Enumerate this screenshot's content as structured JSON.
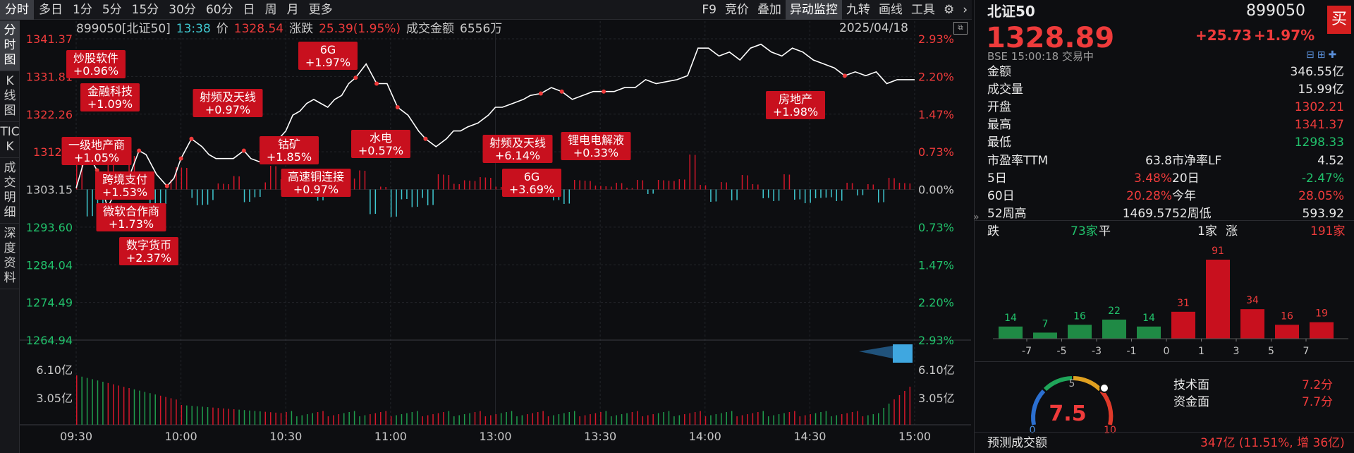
{
  "toolbar": {
    "periods": [
      "分时",
      "多日",
      "1分",
      "5分",
      "15分",
      "30分",
      "60分",
      "日",
      "周",
      "月",
      "更多"
    ],
    "tools": [
      "F9",
      "竞价",
      "叠加",
      "异动监控",
      "九转",
      "画线",
      "工具"
    ]
  },
  "sidebar": {
    "tabs": [
      "分时图",
      "K线图",
      "TICK",
      "成交明细",
      "深度资料"
    ]
  },
  "info": {
    "code_name": "899050[北证50]",
    "time": "13:38",
    "price_label": "价",
    "price": "1328.54",
    "change_label": "涨跌",
    "change": "25.39(1.95%)",
    "amount_label": "成交金额",
    "amount": "6556万",
    "date": "2025/04/18"
  },
  "quote": {
    "name": "北证50",
    "code": "899050",
    "price": "1328.89",
    "change": "+25.73",
    "change_pct": "+1.97%",
    "exchange_line": "BSE  15:00:18  交易中",
    "buy_label": "买",
    "rows": [
      {
        "label": "金额",
        "value": "346.55亿",
        "color": "white"
      },
      {
        "label": "成交量",
        "value": "15.99亿",
        "color": "white"
      },
      {
        "label": "开盘",
        "value": "1302.21",
        "color": "red"
      },
      {
        "label": "最高",
        "value": "1341.37",
        "color": "red"
      },
      {
        "label": "最低",
        "value": "1298.33",
        "color": "green"
      }
    ],
    "grid": [
      {
        "l1": "市盈率TTM",
        "v1": "63.8",
        "c1": "white",
        "l2": "市净率LF",
        "v2": "4.52",
        "c2": "white"
      },
      {
        "l1": "5日",
        "v1": "3.48%",
        "c1": "red",
        "l2": "20日",
        "v2": "-2.47%",
        "c2": "green"
      },
      {
        "l1": "60日",
        "v1": "20.28%",
        "c1": "red",
        "l2": "今年",
        "v2": "28.05%",
        "c2": "red"
      },
      {
        "l1": "52周高",
        "v1": "1469.57",
        "c1": "white",
        "l2": "52周低",
        "v2": "593.92",
        "c2": "white"
      }
    ],
    "breadth": {
      "down_label": "跌",
      "down": "73家",
      "flat_label": "平",
      "flat": "1家",
      "up_label": "涨",
      "up": "191家"
    },
    "score": {
      "value": "7.5",
      "tech_label": "技术面",
      "tech": "7.2分",
      "fund_label": "资金面",
      "fund": "7.7分",
      "gauge_min": "0",
      "gauge_mid": "5",
      "gauge_max": "10"
    },
    "forecast_label": "预测成交额",
    "forecast": "347亿 (11.51%, 增 36亿)"
  },
  "chart_data": [
    {
      "type": "line",
      "series_note": "intraday index price",
      "x_ticks": [
        "09:30",
        "10:00",
        "10:30",
        "11:00",
        "13:00",
        "13:30",
        "14:00",
        "14:30",
        "15:00"
      ],
      "y_ticks_left": [
        "1341.37",
        "1331.81",
        "1322.26",
        "1312.7",
        "1303.15",
        "1293.60",
        "1284.04",
        "1274.49",
        "1264.94"
      ],
      "y_ticks_right": [
        "2.93%",
        "2.20%",
        "1.47%",
        "0.73%",
        "0.00%",
        "0.73%",
        "1.47%",
        "2.20%",
        "2.93%"
      ],
      "ylim": [
        1264.94,
        1341.37
      ],
      "prev_close": 1303.15,
      "t": [
        0,
        3,
        6,
        9,
        12,
        15,
        18,
        20,
        23,
        26,
        28,
        30,
        33,
        36,
        38,
        40,
        42,
        45,
        48,
        50,
        53,
        55,
        58,
        60,
        62,
        64,
        66,
        68,
        70,
        72,
        74,
        76,
        78,
        80,
        83,
        86,
        89,
        92,
        95,
        98,
        100,
        103,
        106,
        108,
        110,
        112,
        115,
        118,
        120,
        122,
        125,
        128,
        130,
        133,
        136,
        139,
        142,
        145,
        148,
        151,
        154,
        157,
        160,
        163,
        166,
        169,
        172,
        175,
        178,
        181,
        184,
        187,
        190,
        193,
        196,
        199,
        202,
        205,
        208,
        211,
        214,
        217,
        220,
        223,
        226,
        229,
        232,
        235,
        238,
        240
      ],
      "price": [
        1303.5,
        1312.7,
        1308,
        1298.5,
        1304,
        1306,
        1313,
        1312,
        1307,
        1304,
        1306,
        1311,
        1316,
        1314,
        1312,
        1311,
        1311,
        1311,
        1313,
        1311,
        1310,
        1311,
        1316,
        1318,
        1322,
        1323,
        1325,
        1326,
        1325,
        1324,
        1326,
        1327,
        1330,
        1331.5,
        1335,
        1330,
        1330,
        1324,
        1322,
        1318,
        1316,
        1314,
        1316,
        1318,
        1318,
        1319,
        1320,
        1322,
        1324,
        1324,
        1325,
        1326,
        1327,
        1327.5,
        1329,
        1328,
        1326,
        1327,
        1328,
        1328,
        1328,
        1329,
        1329,
        1331,
        1330,
        1330.5,
        1331,
        1332,
        1339,
        1339,
        1337,
        1338,
        1336,
        1339,
        1340,
        1338,
        1337,
        1339,
        1338,
        1336,
        1335,
        1334,
        1332,
        1333,
        1332,
        1333,
        1330,
        1331,
        1331,
        1331
      ],
      "annotations": [
        {
          "label": "炒股软件",
          "pct": "+0.96%"
        },
        {
          "label": "金融科技",
          "pct": "+1.09%"
        },
        {
          "label": "一级地产商",
          "pct": "+1.05%"
        },
        {
          "label": "跨境支付",
          "pct": "+1.53%"
        },
        {
          "label": "微软合作商",
          "pct": "+1.73%"
        },
        {
          "label": "数字货币",
          "pct": "+2.37%"
        },
        {
          "label": "射频及天线",
          "pct": "+0.97%"
        },
        {
          "label": "6G",
          "pct": "+1.97%"
        },
        {
          "label": "钴矿",
          "pct": "+1.85%"
        },
        {
          "label": "高速铜连接",
          "pct": "+0.97%"
        },
        {
          "label": "水电",
          "pct": "+0.57%"
        },
        {
          "label": "射频及天线",
          "pct": "+6.14%"
        },
        {
          "label": "6G",
          "pct": "+3.69%"
        },
        {
          "label": "锂电电解液",
          "pct": "+0.33%"
        },
        {
          "label": "房地产",
          "pct": "+1.98%"
        }
      ]
    },
    {
      "type": "bar",
      "series_note": "turnover volume",
      "y_ticks": [
        "6.10亿",
        "3.05亿"
      ],
      "ylim": [
        0,
        9.15
      ]
    },
    {
      "type": "bar",
      "series_note": "advance/decline distribution",
      "categories": [
        "-7",
        "-5",
        "-3",
        "-1",
        "0",
        "1",
        "3",
        "5",
        "7"
      ],
      "bins": [
        {
          "value": 14,
          "color": "green"
        },
        {
          "value": 7,
          "color": "green"
        },
        {
          "value": 16,
          "color": "green"
        },
        {
          "value": 22,
          "color": "green"
        },
        {
          "value": 14,
          "color": "green"
        },
        {
          "value": 31,
          "color": "red"
        },
        {
          "value": 91,
          "color": "red"
        },
        {
          "value": 34,
          "color": "red"
        },
        {
          "value": 16,
          "color": "red"
        },
        {
          "value": 19,
          "color": "red"
        }
      ]
    }
  ],
  "colors": {
    "up": "#d4172a",
    "down": "#1f9d4c",
    "line": "#ffffff",
    "bg": "#0d0e11",
    "label_bg": "#c8101e",
    "cyan": "#3fc8d0"
  }
}
